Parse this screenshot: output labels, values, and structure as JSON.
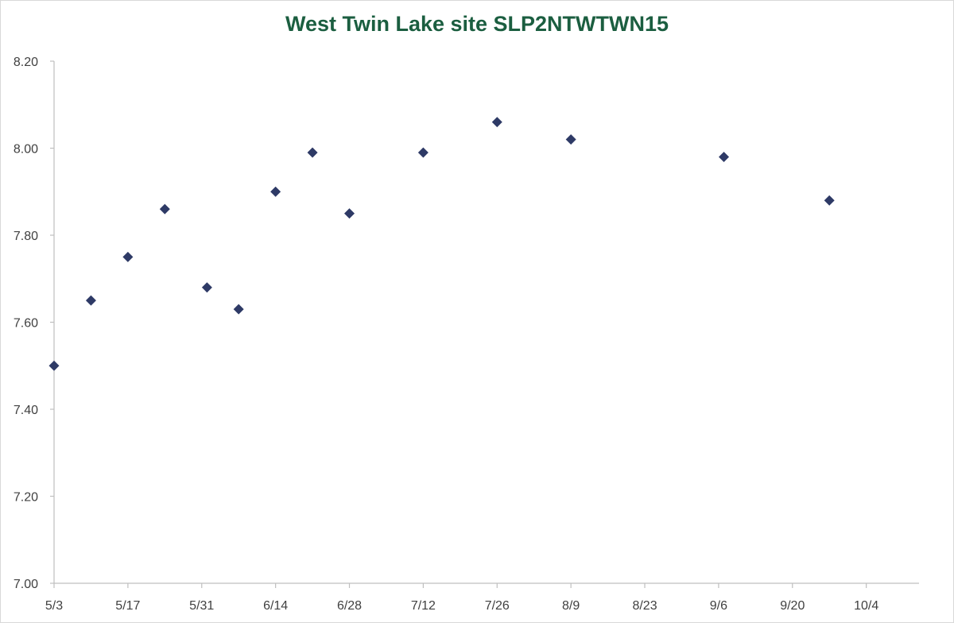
{
  "chart_data": {
    "type": "scatter",
    "title": "West Twin Lake site SLP2NTWTWN15",
    "xlabel": "",
    "ylabel": "",
    "x_tick_labels": [
      "5/3",
      "5/17",
      "5/31",
      "6/14",
      "6/28",
      "7/12",
      "7/26",
      "8/9",
      "8/23",
      "9/6",
      "9/20",
      "10/4"
    ],
    "y_tick_labels": [
      "7.00",
      "7.20",
      "7.40",
      "7.60",
      "7.80",
      "8.00",
      "8.20"
    ],
    "x_tick_dates": [
      "5/3",
      "5/17",
      "5/31",
      "6/14",
      "6/28",
      "7/12",
      "7/26",
      "8/9",
      "8/23",
      "9/6",
      "9/20",
      "10/4"
    ],
    "y_tick_values": [
      7.0,
      7.2,
      7.4,
      7.6,
      7.8,
      8.0,
      8.2
    ],
    "xlim": [
      "5/3",
      "10/14"
    ],
    "ylim": [
      7.0,
      8.2
    ],
    "grid": false,
    "legend": "none",
    "marker": "diamond",
    "marker_color": "#2e3a66",
    "axis_color": "#bfbfbf",
    "series": [
      {
        "points": [
          {
            "x": "5/3",
            "y": 7.5
          },
          {
            "x": "5/10",
            "y": 7.65
          },
          {
            "x": "5/17",
            "y": 7.75
          },
          {
            "x": "5/24",
            "y": 7.86
          },
          {
            "x": "6/1",
            "y": 7.68
          },
          {
            "x": "6/7",
            "y": 7.63
          },
          {
            "x": "6/14",
            "y": 7.9
          },
          {
            "x": "6/21",
            "y": 7.99
          },
          {
            "x": "6/28",
            "y": 7.85
          },
          {
            "x": "7/12",
            "y": 7.99
          },
          {
            "x": "7/26",
            "y": 8.06
          },
          {
            "x": "8/9",
            "y": 8.02
          },
          {
            "x": "9/7",
            "y": 7.98
          },
          {
            "x": "9/27",
            "y": 7.88
          }
        ]
      }
    ]
  }
}
